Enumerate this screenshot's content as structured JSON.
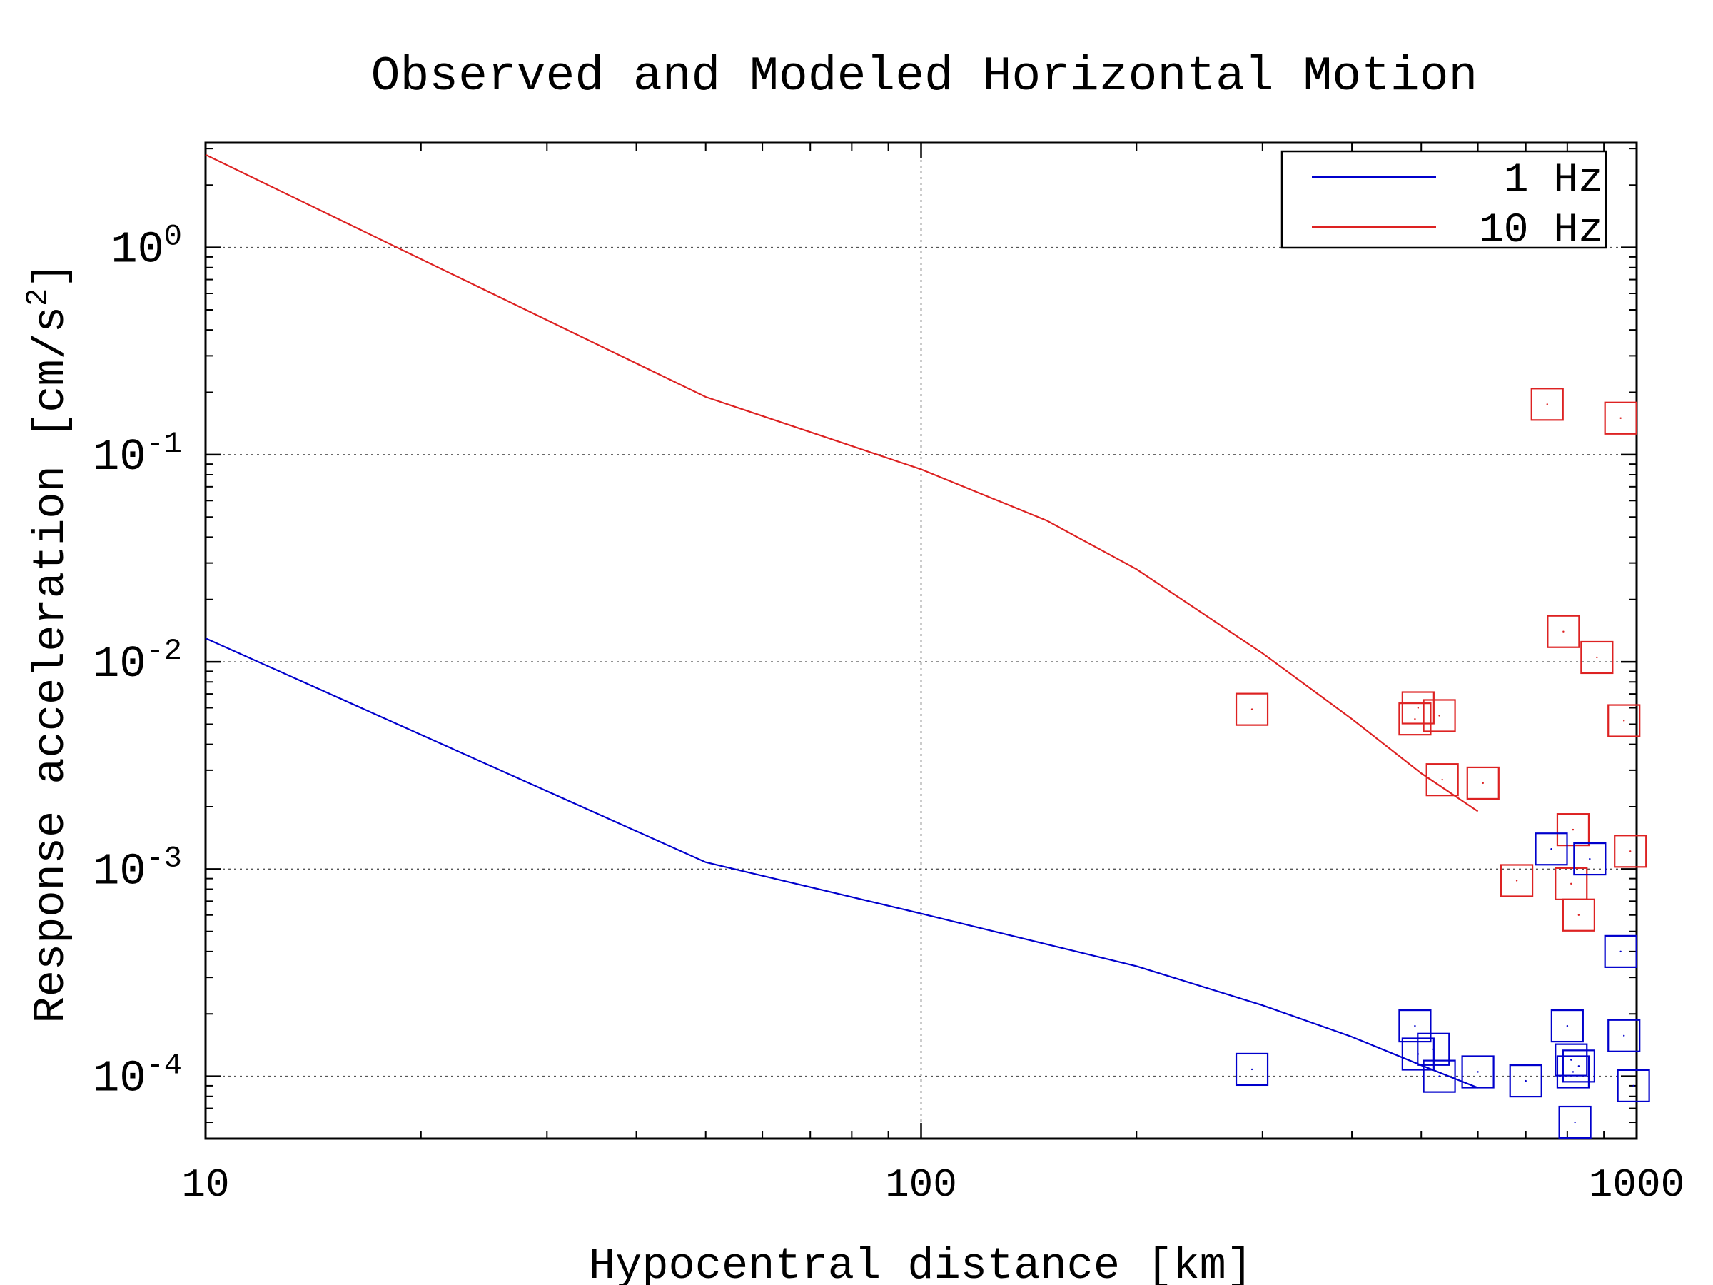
{
  "chart_data": {
    "type": "line",
    "title": "Observed and Modeled Horizontal Motion",
    "xlabel": "Hypocentral distance [km]",
    "ylabel_main": "Response acceleration [cm/s",
    "ylabel_sup": "2",
    "ylabel_close": "]",
    "x_scale": "log",
    "y_scale": "log",
    "xlim": [
      10,
      1000
    ],
    "ylim": [
      5e-05,
      3.2
    ],
    "grid": true,
    "legend_position": "top-right",
    "x_ticks": [
      {
        "value": 10,
        "label": "10"
      },
      {
        "value": 100,
        "label": "100"
      },
      {
        "value": 1000,
        "label": "1000"
      }
    ],
    "y_ticks": [
      {
        "value": 1,
        "base": "10",
        "exp": "0"
      },
      {
        "value": 0.1,
        "base": "10",
        "exp": "-1"
      },
      {
        "value": 0.01,
        "base": "10",
        "exp": "-2"
      },
      {
        "value": 0.001,
        "base": "10",
        "exp": "-3"
      },
      {
        "value": 0.0001,
        "base": "10",
        "exp": "-4"
      }
    ],
    "series": [
      {
        "name": "1 Hz",
        "color": "#0000cc",
        "line": {
          "x": [
            10,
            50,
            100,
            200,
            300,
            400,
            500,
            600
          ],
          "y": [
            0.013,
            0.00108,
            0.00061,
            0.00034,
            0.00022,
            0.000155,
            0.000113,
            8.8e-05
          ]
        },
        "observed": {
          "x": [
            290,
            490,
            495,
            520,
            530,
            600,
            700,
            760,
            800,
            810,
            815,
            820,
            830,
            860,
            950,
            960,
            990
          ],
          "y": [
            0.000108,
            0.000175,
            0.000128,
            0.000135,
            0.0001,
            0.000105,
            9.5e-05,
            0.00125,
            0.000175,
            0.00012,
            0.000105,
            6e-05,
            0.000112,
            0.00112,
            0.0004,
            0.000157,
            9e-05
          ]
        }
      },
      {
        "name": "10 Hz",
        "color": "#dd2222",
        "line": {
          "x": [
            10,
            50,
            100,
            150,
            200,
            300,
            400,
            500,
            600
          ],
          "y": [
            2.8,
            0.19,
            0.085,
            0.048,
            0.028,
            0.011,
            0.0053,
            0.0029,
            0.0019
          ]
        },
        "observed": {
          "x": [
            290,
            490,
            495,
            530,
            535,
            610,
            680,
            750,
            790,
            810,
            815,
            830,
            880,
            950,
            960,
            980
          ],
          "y": [
            0.0059,
            0.0053,
            0.006,
            0.0055,
            0.0027,
            0.0026,
            0.00088,
            0.175,
            0.014,
            0.00085,
            0.00155,
            0.0006,
            0.0105,
            0.15,
            0.0052,
            0.00122
          ]
        }
      }
    ]
  }
}
